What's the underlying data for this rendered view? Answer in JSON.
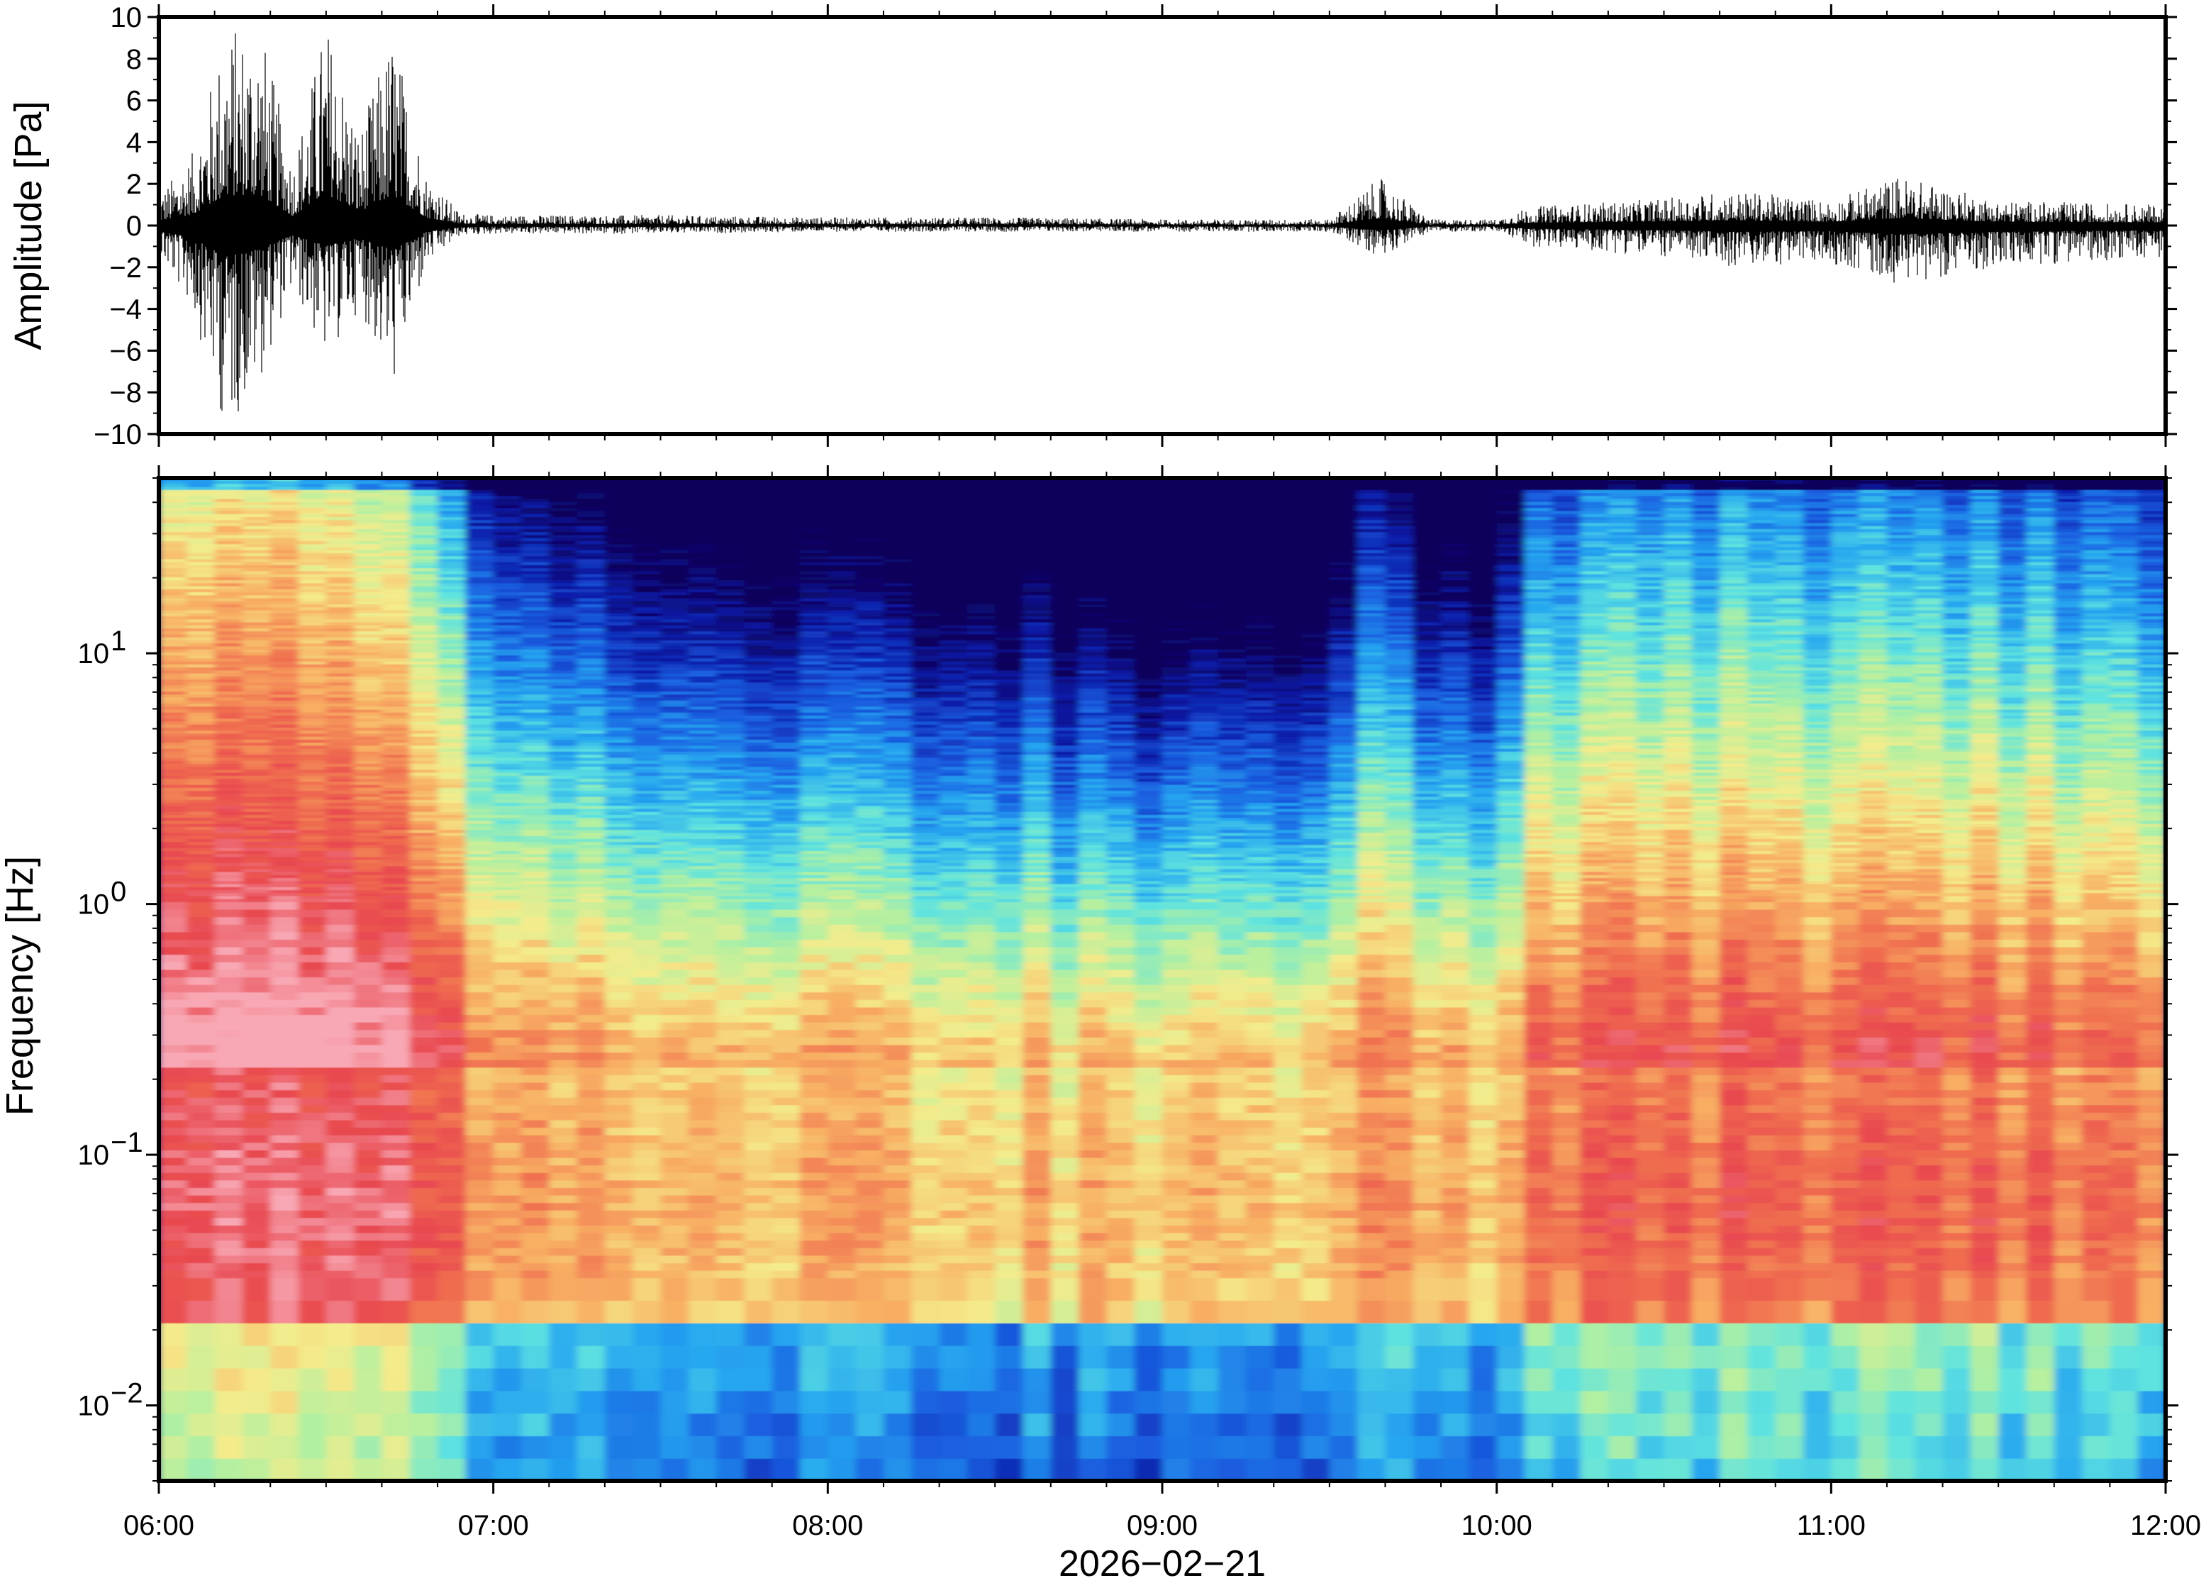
{
  "chart_data": [
    {
      "type": "line",
      "ylabel": "Amplitude [Pa]",
      "ylim": [
        -10,
        10
      ],
      "yticks": [
        10,
        8,
        6,
        4,
        2,
        0,
        -2,
        -4,
        -6,
        -8,
        -10
      ],
      "ytick_labels": [
        "10",
        "8",
        "6",
        "4",
        "2",
        "0",
        "−2",
        "−4",
        "−6",
        "−8",
        "−10"
      ],
      "grid": false,
      "series": [
        {
          "color": "#000000",
          "envelope_hours": [
            6.0,
            6.1,
            6.2,
            6.3,
            6.4,
            6.5,
            6.6,
            6.7,
            6.8,
            6.9,
            7.0,
            7.5,
            8.0,
            8.5,
            9.0,
            9.5,
            9.65,
            9.8,
            10.0,
            10.1,
            10.5,
            10.7,
            11.0,
            11.2,
            11.5,
            12.0
          ],
          "envelope_max_pa": [
            1.5,
            3.5,
            9.5,
            10.0,
            3.0,
            10.0,
            4.5,
            9.5,
            2.5,
            0.6,
            0.5,
            0.5,
            0.4,
            0.4,
            0.3,
            0.3,
            2.3,
            0.3,
            0.3,
            0.9,
            1.3,
            1.7,
            1.2,
            2.4,
            1.2,
            1.0
          ],
          "envelope_min_pa": [
            -1.5,
            -4.0,
            -10.0,
            -7.5,
            -3.0,
            -6.5,
            -4.0,
            -7.8,
            -2.0,
            -0.5,
            -0.4,
            -0.4,
            -0.3,
            -0.3,
            -0.3,
            -0.3,
            -1.5,
            -0.3,
            -0.3,
            -1.0,
            -1.5,
            -2.0,
            -1.8,
            -2.8,
            -2.0,
            -1.5
          ]
        }
      ]
    },
    {
      "type": "heatmap",
      "ylabel": "Frequency [Hz]",
      "yscale": "log",
      "ylim": [
        0.005,
        50
      ],
      "ytick_labels": [
        {
          "base": "10",
          "exp": "1"
        },
        {
          "base": "10",
          "exp": "0"
        },
        {
          "base": "10",
          "exp": "−1"
        },
        {
          "base": "10",
          "exp": "−2"
        }
      ],
      "colormap": [
        "#08005a",
        "#0c1ca8",
        "#1a5ee0",
        "#26a6f0",
        "#5ee3e0",
        "#b4f0a0",
        "#f4ec8c",
        "#f8b064",
        "#f07050",
        "#e84850",
        "#f8a8b4"
      ],
      "xlabel": "2026−02−21",
      "xlim": [
        "06:00",
        "12:00"
      ],
      "xtick_labels": [
        "06:00",
        "07:00",
        "08:00",
        "09:00",
        "10:00",
        "11:00",
        "12:00"
      ],
      "power_profile_hours": [
        6.0,
        6.4,
        6.8,
        7.0,
        7.5,
        8.0,
        8.5,
        9.0,
        9.5,
        9.65,
        9.8,
        10.0,
        10.1,
        10.5,
        11.0,
        11.5,
        12.0
      ],
      "power_profile_level": [
        0.92,
        0.95,
        0.78,
        0.52,
        0.42,
        0.38,
        0.36,
        0.28,
        0.3,
        0.55,
        0.38,
        0.38,
        0.6,
        0.66,
        0.65,
        0.62,
        0.6
      ]
    }
  ]
}
